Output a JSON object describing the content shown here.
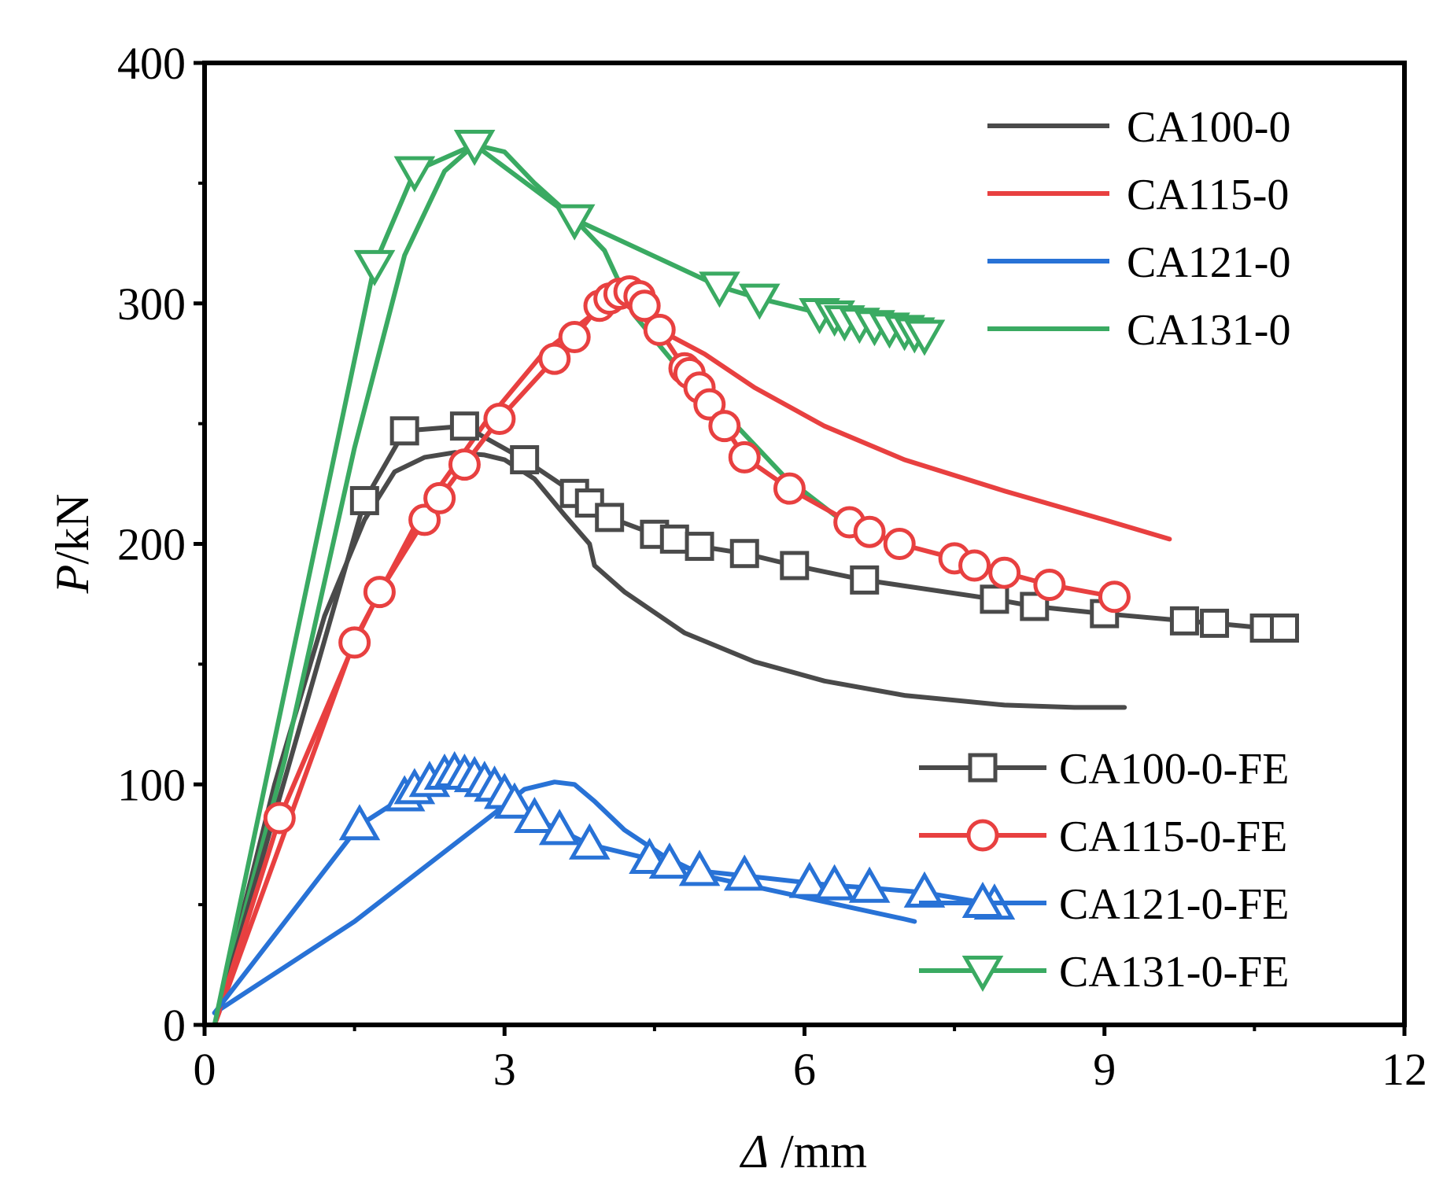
{
  "chart_data": {
    "type": "line",
    "title": "",
    "xlabel": {
      "symbol": "Δ",
      "unit": " /mm"
    },
    "ylabel": {
      "symbol": "P",
      "unit": "/kN"
    },
    "xlim": [
      0,
      12
    ],
    "ylim": [
      0,
      400
    ],
    "xticks": [
      0,
      3,
      6,
      9,
      12
    ],
    "yticks": [
      0,
      100,
      200,
      300,
      400
    ],
    "grid": false,
    "legend_placement": [
      "top-right",
      "bottom-right"
    ],
    "series": [
      {
        "name": "CA100-0",
        "color": "#4a4a4a",
        "marker": "none",
        "x": [
          0.1,
          0.7,
          1.2,
          1.6,
          1.9,
          2.2,
          2.5,
          2.8,
          3.0,
          3.3,
          3.6,
          3.85,
          3.9,
          4.2,
          4.8,
          5.5,
          6.2,
          7.0,
          8.0,
          8.7,
          9.2
        ],
        "y": [
          0,
          100,
          170,
          210,
          230,
          236,
          238,
          237,
          235,
          227,
          212,
          200,
          191,
          180,
          163,
          151,
          143,
          137,
          133,
          132,
          132
        ]
      },
      {
        "name": "CA115-0",
        "color": "#e84040",
        "marker": "none",
        "x": [
          0.1,
          0.8,
          1.5,
          2.2,
          2.8,
          3.4,
          3.9,
          4.2,
          4.5,
          5.0,
          5.5,
          6.2,
          7.0,
          8.0,
          9.0,
          9.65
        ],
        "y": [
          0,
          80,
          160,
          215,
          250,
          280,
          296,
          300,
          290,
          279,
          265,
          249,
          235,
          222,
          210,
          202
        ]
      },
      {
        "name": "CA121-0",
        "color": "#2872d6",
        "marker": "none",
        "x": [
          0.1,
          1.5,
          2.9,
          3.2,
          3.5,
          3.7,
          3.9,
          4.2,
          4.6,
          5.0,
          6.0,
          7.0,
          7.1
        ],
        "y": [
          5,
          43,
          88,
          98,
          101,
          100,
          93,
          81,
          70,
          62,
          53,
          44,
          43
        ]
      },
      {
        "name": "CA131-0",
        "color": "#3aaa62",
        "marker": "none",
        "x": [
          0.1,
          0.8,
          1.5,
          2.0,
          2.4,
          2.7,
          3.0,
          3.3,
          3.7,
          4.0,
          4.3,
          4.8,
          5.3,
          5.8,
          6.3,
          6.5
        ],
        "y": [
          0,
          110,
          240,
          320,
          355,
          366,
          363,
          350,
          335,
          322,
          295,
          270,
          250,
          228,
          212,
          208
        ]
      },
      {
        "name": "CA100-0-FE",
        "color": "#4a4a4a",
        "marker": "square",
        "x": [
          0.1,
          1.6,
          2.0,
          2.6,
          3.2,
          3.7,
          3.85,
          4.05,
          4.5,
          4.7,
          4.95,
          5.4,
          5.9,
          6.6,
          7.9,
          8.3,
          9.0,
          9.8,
          10.1,
          10.6,
          10.8
        ],
        "y": [
          0,
          218,
          247,
          249,
          235,
          221,
          217,
          211,
          204,
          202,
          199,
          196,
          191,
          185,
          177,
          174,
          171,
          168,
          167,
          165,
          165
        ]
      },
      {
        "name": "CA115-0-FE",
        "color": "#e84040",
        "marker": "circle",
        "x": [
          0.1,
          0.75,
          1.5,
          1.75,
          2.2,
          2.35,
          2.6,
          2.95,
          3.5,
          3.7,
          3.95,
          4.05,
          4.15,
          4.25,
          4.35,
          4.4,
          4.55,
          4.8,
          4.85,
          4.95,
          5.05,
          5.2,
          5.4,
          5.85,
          6.45,
          6.65,
          6.95,
          7.5,
          7.7,
          8.0,
          8.45,
          9.1
        ],
        "y": [
          0,
          86,
          159,
          180,
          210,
          219,
          233,
          252,
          277,
          286,
          299,
          302,
          304,
          305,
          303,
          299,
          289,
          273,
          271,
          265,
          258,
          249,
          236,
          223,
          209,
          205,
          200,
          194,
          191,
          188,
          183,
          178
        ]
      },
      {
        "name": "CA121-0-FE",
        "color": "#2872d6",
        "marker": "triangle-up",
        "x": [
          0.1,
          1.55,
          2.0,
          2.1,
          2.25,
          2.4,
          2.5,
          2.6,
          2.7,
          2.8,
          2.9,
          3.0,
          3.1,
          3.3,
          3.55,
          3.85,
          4.45,
          4.65,
          4.95,
          5.4,
          6.05,
          6.3,
          6.65,
          7.2,
          7.9
        ],
        "y": [
          5,
          83,
          95,
          98,
          101,
          104,
          105,
          104,
          103,
          101,
          99,
          96,
          92,
          86,
          81,
          75,
          69,
          67,
          64,
          62,
          59,
          58,
          57,
          55,
          50
        ]
      },
      {
        "name": "CA131-0-FE",
        "color": "#3aaa62",
        "marker": "triangle-down",
        "x": [
          0.1,
          1.7,
          2.1,
          2.7,
          3.7,
          5.15,
          5.55,
          6.15,
          6.3,
          6.4,
          6.55,
          6.7,
          6.85,
          7.0,
          7.1,
          7.2
        ],
        "y": [
          0,
          316,
          355,
          366,
          335,
          307,
          302,
          296,
          295,
          293,
          292,
          291,
          290,
          289,
          288,
          287
        ]
      }
    ]
  }
}
